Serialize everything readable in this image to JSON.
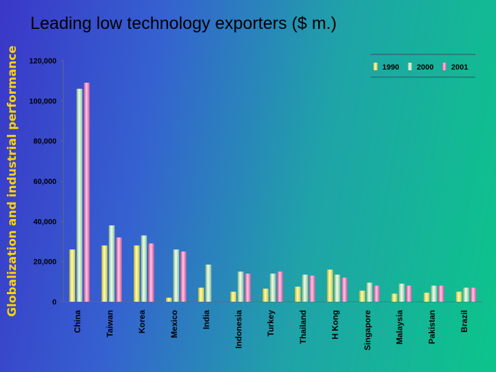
{
  "side_title": "Globalization and industrial performance",
  "chart_data": {
    "type": "bar",
    "title": "Leading low technology exporters ($ m.)",
    "xlabel": "",
    "ylabel": "",
    "ylim": [
      0,
      120000
    ],
    "yticks": [
      0,
      20000,
      40000,
      60000,
      80000,
      100000,
      120000
    ],
    "ytick_labels": [
      "0",
      "20,000",
      "40,000",
      "60,000",
      "80,000",
      "100,000",
      "120,000"
    ],
    "grid": false,
    "legend_position": "top-right",
    "categories": [
      "China",
      "Taiwan",
      "Korea",
      "Mexico",
      "India",
      "Indonesia",
      "Turkey",
      "Thailand",
      "H Kong",
      "Singapore",
      "Malaysia",
      "Pakistan",
      "Brazil"
    ],
    "series": [
      {
        "name": "1990",
        "color": "#f2f06a",
        "values": [
          26000,
          28000,
          28000,
          2000,
          7000,
          5000,
          6500,
          7500,
          16000,
          5500,
          4000,
          4500,
          5000
        ]
      },
      {
        "name": "2000",
        "color": "#b9ecb8",
        "values": [
          106000,
          38000,
          33000,
          26000,
          18500,
          15000,
          14000,
          13500,
          13500,
          9500,
          9000,
          8000,
          7000
        ]
      },
      {
        "name": "2001",
        "color": "#f07cc0",
        "values": [
          109000,
          32000,
          29000,
          25000,
          0,
          14000,
          15000,
          13000,
          12000,
          8000,
          8000,
          8000,
          7000
        ]
      }
    ]
  }
}
